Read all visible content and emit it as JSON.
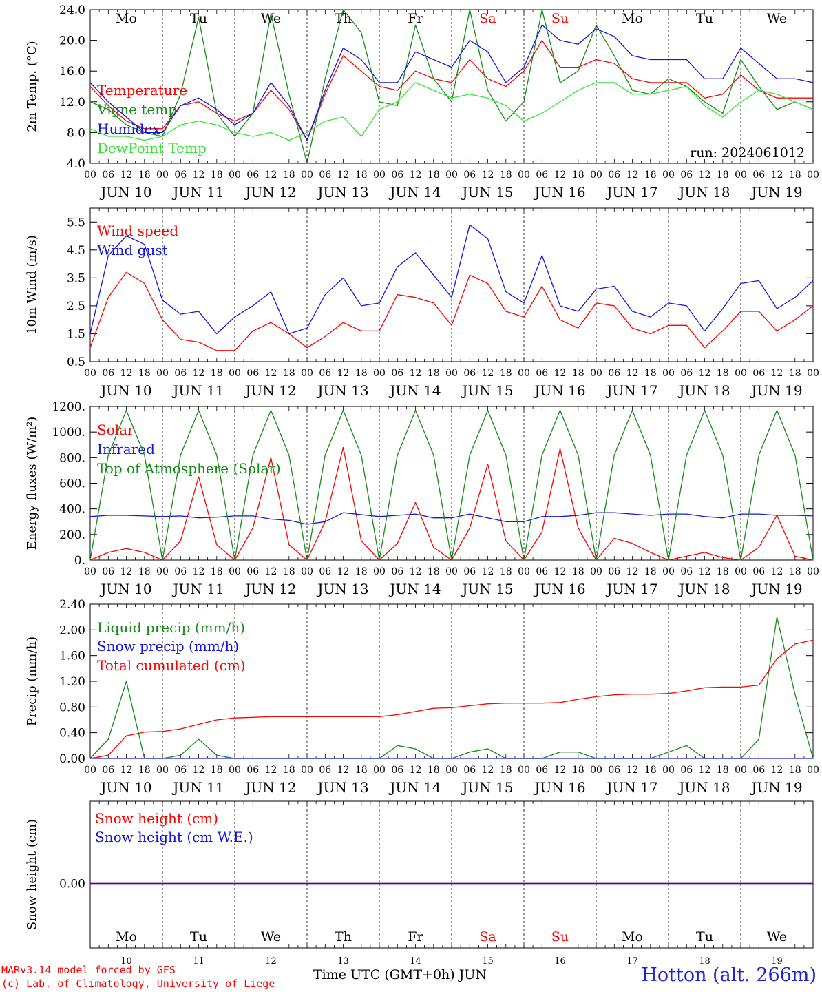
{
  "chart_data": [
    {
      "type": "line",
      "ylabel": "2m Temp. (°C)",
      "ylim": [
        4,
        24
      ],
      "ytick_labels": [
        "4.0",
        "8.0",
        "12.0",
        "16.0",
        "20.0",
        "24.0"
      ],
      "annotation": "run: 2024061012",
      "x_hours": [
        0,
        6,
        12,
        18,
        24,
        30,
        36,
        42,
        48,
        54,
        60,
        66,
        72,
        78,
        84,
        90,
        96,
        102,
        108,
        114,
        120,
        126,
        132,
        138,
        144,
        150,
        156,
        162,
        168,
        174,
        180,
        186,
        192,
        198,
        204,
        210,
        216,
        222,
        228,
        234,
        240
      ],
      "series": [
        {
          "name": "Temperature",
          "color": "#ff0000",
          "values": [
            14.0,
            11.5,
            9.5,
            8.5,
            8.5,
            11.5,
            12.0,
            10.5,
            9.5,
            10.5,
            13.5,
            11.0,
            7.0,
            13.0,
            18.0,
            16.0,
            14.0,
            13.5,
            16.0,
            15.0,
            14.5,
            17.5,
            15.0,
            14.0,
            16.0,
            20.0,
            16.5,
            16.5,
            17.5,
            17.0,
            15.0,
            14.5,
            14.5,
            14.5,
            12.5,
            13.0,
            15.5,
            13.5,
            12.5,
            12.5,
            12.5
          ]
        },
        {
          "name": "Vigne temp",
          "color": "#148c14",
          "values": [
            12.0,
            11.0,
            9.0,
            8.0,
            7.5,
            13.0,
            23.0,
            10.5,
            7.5,
            10.5,
            23.5,
            13.0,
            4.0,
            15.0,
            24.0,
            21.0,
            12.0,
            11.5,
            22.0,
            15.0,
            12.0,
            24.0,
            13.5,
            9.5,
            12.0,
            24.0,
            14.5,
            16.0,
            22.0,
            18.0,
            13.5,
            13.0,
            15.0,
            14.0,
            12.0,
            10.5,
            17.5,
            14.0,
            11.0,
            12.0,
            11.0
          ]
        },
        {
          "name": "Humidex",
          "color": "#1414e6",
          "values": [
            14.5,
            12.0,
            10.0,
            8.0,
            8.0,
            11.5,
            12.5,
            11.0,
            9.0,
            10.5,
            14.5,
            11.5,
            7.0,
            13.5,
            19.0,
            17.5,
            14.5,
            14.5,
            18.5,
            17.5,
            16.5,
            20.0,
            18.5,
            14.5,
            16.5,
            22.0,
            20.0,
            19.5,
            21.5,
            20.5,
            18.0,
            17.5,
            17.5,
            17.5,
            15.0,
            15.0,
            19.0,
            17.0,
            15.0,
            15.0,
            14.5
          ]
        },
        {
          "name": "DewPoint Temp",
          "color": "#33e633",
          "values": [
            8.5,
            7.5,
            7.5,
            7.0,
            7.5,
            9.0,
            9.5,
            9.0,
            8.0,
            7.5,
            8.0,
            7.0,
            8.0,
            9.5,
            10.0,
            7.5,
            11.0,
            12.0,
            14.5,
            13.5,
            12.5,
            13.0,
            12.5,
            11.5,
            9.5,
            10.5,
            12.0,
            13.5,
            14.5,
            14.5,
            13.0,
            13.0,
            13.5,
            14.0,
            11.5,
            10.0,
            12.0,
            13.5,
            13.0,
            12.0,
            11.0
          ]
        }
      ]
    },
    {
      "type": "line",
      "ylabel": "10m Wind (m/s)",
      "ylim": [
        0.5,
        6.0
      ],
      "ytick_labels": [
        "0.5",
        "1.5",
        "2.5",
        "3.5",
        "4.5",
        "5.5"
      ],
      "reference_line": 5.0,
      "x_hours": [
        0,
        6,
        12,
        18,
        24,
        30,
        36,
        42,
        48,
        54,
        60,
        66,
        72,
        78,
        84,
        90,
        96,
        102,
        108,
        114,
        120,
        126,
        132,
        138,
        144,
        150,
        156,
        162,
        168,
        174,
        180,
        186,
        192,
        198,
        204,
        210,
        216,
        222,
        228,
        234,
        240
      ],
      "series": [
        {
          "name": "Wind speed",
          "color": "#ff0000",
          "values": [
            1.0,
            2.8,
            3.7,
            3.3,
            2.0,
            1.3,
            1.2,
            0.9,
            0.9,
            1.6,
            1.9,
            1.5,
            1.0,
            1.4,
            1.9,
            1.6,
            1.6,
            2.9,
            2.8,
            2.6,
            1.8,
            3.6,
            3.3,
            2.3,
            2.1,
            3.2,
            2.0,
            1.7,
            2.6,
            2.5,
            1.7,
            1.5,
            1.8,
            1.8,
            1.0,
            1.6,
            2.3,
            2.3,
            1.6,
            2.0,
            2.5
          ]
        },
        {
          "name": "Wind gust",
          "color": "#1414e6",
          "values": [
            1.5,
            4.3,
            5.0,
            4.7,
            2.7,
            2.2,
            2.3,
            1.5,
            2.1,
            2.5,
            3.0,
            1.5,
            1.7,
            2.9,
            3.5,
            2.5,
            2.6,
            3.9,
            4.4,
            3.6,
            2.8,
            5.4,
            4.9,
            3.0,
            2.6,
            4.3,
            2.5,
            2.3,
            3.1,
            3.2,
            2.3,
            2.1,
            2.6,
            2.5,
            1.6,
            2.4,
            3.3,
            3.4,
            2.4,
            2.8,
            3.4
          ]
        }
      ]
    },
    {
      "type": "line",
      "ylabel": "Energy fluxes (W/m²)",
      "ylim": [
        0,
        1200
      ],
      "ytick_labels": [
        "0.",
        "200.",
        "400.",
        "600.",
        "800.",
        "1000.",
        "1200."
      ],
      "x_hours": [
        0,
        6,
        12,
        18,
        24,
        30,
        36,
        42,
        48,
        54,
        60,
        66,
        72,
        78,
        84,
        90,
        96,
        102,
        108,
        114,
        120,
        126,
        132,
        138,
        144,
        150,
        156,
        162,
        168,
        174,
        180,
        186,
        192,
        198,
        204,
        210,
        216,
        222,
        228,
        234,
        240
      ],
      "series": [
        {
          "name": "Solar",
          "color": "#ff0000",
          "values": [
            0,
            60,
            90,
            60,
            0,
            150,
            650,
            120,
            0,
            250,
            800,
            120,
            0,
            300,
            880,
            150,
            0,
            130,
            450,
            100,
            0,
            250,
            750,
            150,
            0,
            220,
            870,
            250,
            0,
            170,
            130,
            60,
            0,
            30,
            60,
            20,
            0,
            100,
            350,
            30,
            0
          ]
        },
        {
          "name": "Infrared",
          "color": "#1414e6",
          "values": [
            340,
            350,
            350,
            345,
            340,
            345,
            330,
            335,
            345,
            345,
            320,
            310,
            280,
            300,
            370,
            355,
            340,
            350,
            360,
            330,
            330,
            360,
            330,
            300,
            300,
            340,
            340,
            350,
            370,
            370,
            360,
            350,
            360,
            360,
            340,
            330,
            360,
            360,
            350,
            350,
            345
          ]
        },
        {
          "name": "Top of Atmosphere (Solar)",
          "color": "#148c14",
          "values": [
            0,
            820,
            1170,
            820,
            0,
            820,
            1170,
            820,
            0,
            820,
            1170,
            820,
            0,
            820,
            1170,
            820,
            0,
            820,
            1170,
            820,
            0,
            820,
            1170,
            820,
            0,
            820,
            1170,
            820,
            0,
            820,
            1170,
            820,
            0,
            820,
            1170,
            820,
            0,
            820,
            1170,
            820,
            0
          ]
        }
      ]
    },
    {
      "type": "line",
      "ylabel": "Precip (mm/h)",
      "ylim": [
        0,
        2.4
      ],
      "ytick_labels": [
        "0.00",
        "0.40",
        "0.80",
        "1.20",
        "1.60",
        "2.00",
        "2.40"
      ],
      "x_hours": [
        0,
        6,
        12,
        18,
        24,
        30,
        36,
        42,
        48,
        54,
        60,
        66,
        72,
        78,
        84,
        90,
        96,
        102,
        108,
        114,
        120,
        126,
        132,
        138,
        144,
        150,
        156,
        162,
        168,
        174,
        180,
        186,
        192,
        198,
        204,
        210,
        216,
        222,
        228,
        234,
        240
      ],
      "series": [
        {
          "name": "Liquid precip (mm/h)",
          "color": "#148c14",
          "values": [
            0,
            0.3,
            1.2,
            0,
            0,
            0.05,
            0.3,
            0.05,
            0,
            0,
            0,
            0,
            0,
            0,
            0,
            0,
            0,
            0.2,
            0.15,
            0,
            0,
            0.1,
            0.15,
            0,
            0,
            0,
            0.1,
            0.1,
            0,
            0,
            0,
            0,
            0.1,
            0.2,
            0,
            0,
            0,
            0.3,
            2.2,
            1.0,
            0
          ]
        },
        {
          "name": "Snow precip (mm/h)",
          "color": "#1414e6",
          "values": [
            0,
            0,
            0,
            0,
            0,
            0,
            0,
            0,
            0,
            0,
            0,
            0,
            0,
            0,
            0,
            0,
            0,
            0,
            0,
            0,
            0,
            0,
            0,
            0,
            0,
            0,
            0,
            0,
            0,
            0,
            0,
            0,
            0,
            0,
            0,
            0,
            0,
            0,
            0,
            0,
            0
          ]
        },
        {
          "name": "Total cumulated (cm)",
          "color": "#ff0000",
          "values": [
            0,
            0.05,
            0.35,
            0.41,
            0.42,
            0.46,
            0.53,
            0.6,
            0.63,
            0.64,
            0.65,
            0.65,
            0.65,
            0.65,
            0.65,
            0.65,
            0.65,
            0.68,
            0.73,
            0.78,
            0.79,
            0.82,
            0.85,
            0.86,
            0.86,
            0.86,
            0.87,
            0.92,
            0.96,
            0.99,
            1.0,
            1.0,
            1.01,
            1.05,
            1.1,
            1.11,
            1.11,
            1.14,
            1.55,
            1.78,
            1.84
          ]
        }
      ]
    },
    {
      "type": "line",
      "ylabel": "Snow height (cm)",
      "ytick_labels": [
        "0.00"
      ],
      "x_hours": [
        0,
        240
      ],
      "series": [
        {
          "name": "Snow height (cm)",
          "color": "#ff0000",
          "values": [
            0,
            0
          ]
        },
        {
          "name": "Snow height (cm W.E.)",
          "color": "#1414e6",
          "values": [
            0,
            0
          ]
        }
      ]
    }
  ],
  "x_axis": {
    "hour_tick_labels": [
      "00",
      "06",
      "12",
      "18"
    ],
    "end_tick_label": "00",
    "date_labels": [
      "JUN 10",
      "JUN 11",
      "JUN 12",
      "JUN 13",
      "JUN 14",
      "JUN 15",
      "JUN 16",
      "JUN 17",
      "JUN 18",
      "JUN 19"
    ],
    "weekdays": [
      "Mo",
      "Tu",
      "We",
      "Th",
      "Fr",
      "Sa",
      "Su",
      "Mo",
      "Tu",
      "We"
    ],
    "weekend_days": [
      "Sa",
      "Su"
    ],
    "day_numbers": [
      "10",
      "11",
      "12",
      "13",
      "14",
      "15",
      "16",
      "17",
      "18",
      "19"
    ],
    "title": "Time UTC (GMT+0h) JUN"
  },
  "footer": {
    "credit_line1": "MARv3.14 model forced by GFS",
    "credit_line2": "(c) Lab. of Climatology, University of Liege",
    "station": "Hotton (alt. 266m)"
  }
}
